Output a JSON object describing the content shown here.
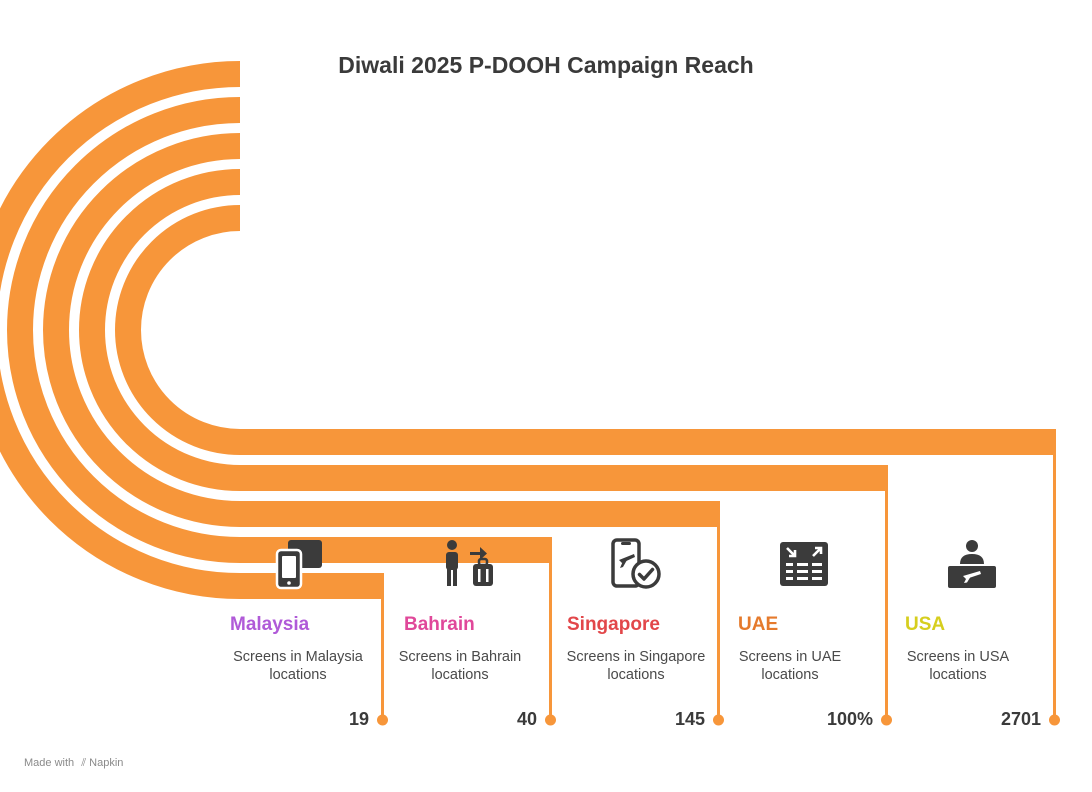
{
  "title": "Diwali 2025 P-DOOH Campaign Reach",
  "colors": {
    "arc": "#F7963A",
    "text": "#3A3A3A",
    "malaysia": "#B05AD8",
    "bahrain": "#E0489A",
    "singapore": "#E2474A",
    "uae": "#E57A2C",
    "usa": "#D6CE1E"
  },
  "items": [
    {
      "country": "Malaysia",
      "description": "Screens in Malaysia locations",
      "value": "19",
      "icon": "mobile-screens-icon"
    },
    {
      "country": "Bahrain",
      "description": "Screens in Bahrain locations",
      "value": "40",
      "icon": "traveler-luggage-icon"
    },
    {
      "country": "Singapore",
      "description": "Screens in Singapore locations",
      "value": "145",
      "icon": "flight-checkin-phone-icon"
    },
    {
      "country": "UAE",
      "description": "Screens in UAE locations",
      "value": "100%",
      "icon": "departure-board-icon"
    },
    {
      "country": "USA",
      "description": "Screens in USA locations",
      "value": "2701",
      "icon": "airport-desk-agent-icon"
    }
  ],
  "credit": {
    "made_with": "Made with",
    "brand": "Napkin"
  }
}
